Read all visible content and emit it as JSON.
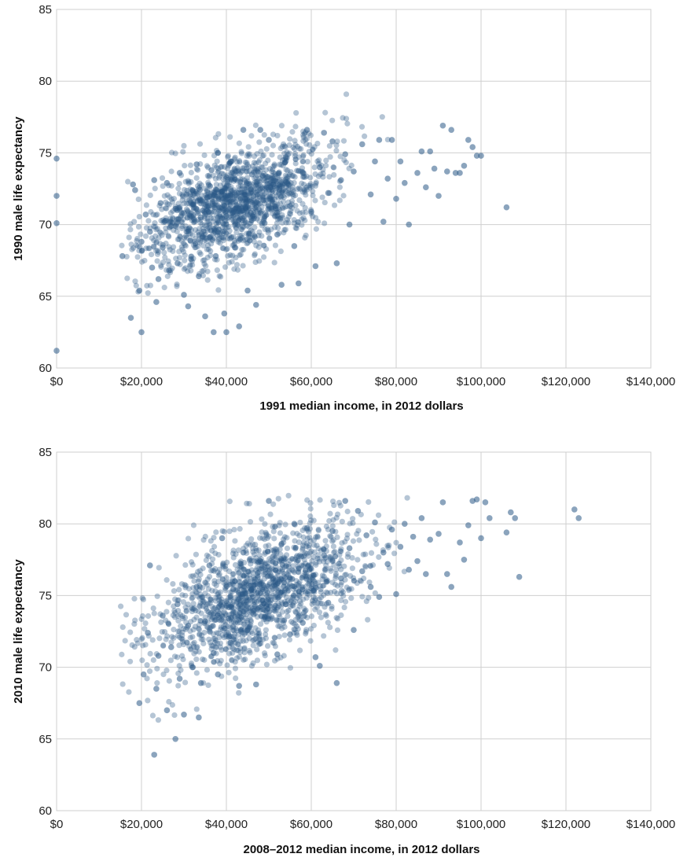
{
  "colors": {
    "point": "#2b5a86",
    "grid": "#cfcfcf",
    "background": "#ffffff",
    "text": "#222222"
  },
  "chart_data": [
    {
      "type": "scatter",
      "xlabel": "1991 median income, in 2012 dollars",
      "ylabel": "1990 male life expectancy",
      "xlim": [
        0,
        140000
      ],
      "ylim": [
        60,
        85
      ],
      "x_ticks": [
        "$0",
        "$20,000",
        "$40,000",
        "$60,000",
        "$80,000",
        "$100,000",
        "$120,000",
        "$140,000"
      ],
      "y_ticks": [
        "60",
        "65",
        "70",
        "75",
        "80",
        "85"
      ],
      "x_tick_values": [
        0,
        20000,
        40000,
        60000,
        80000,
        100000,
        120000,
        140000
      ],
      "y_tick_values": [
        60,
        65,
        70,
        75,
        80,
        85
      ],
      "grid": true,
      "points": [
        [
          0,
          74.6
        ],
        [
          0,
          72.0
        ],
        [
          0,
          70.1
        ],
        [
          0,
          61.2
        ],
        [
          15500,
          67.8
        ],
        [
          17500,
          63.5
        ],
        [
          18000,
          72.8
        ],
        [
          18500,
          72.4
        ],
        [
          19500,
          65.4
        ],
        [
          20000,
          62.5
        ],
        [
          20000,
          68.8
        ],
        [
          21000,
          70.7
        ],
        [
          22000,
          69.5
        ],
        [
          22500,
          67.0
        ],
        [
          23000,
          73.1
        ],
        [
          23500,
          64.6
        ],
        [
          24000,
          66.2
        ],
        [
          24500,
          71.5
        ],
        [
          25000,
          68.4
        ],
        [
          25500,
          70.2
        ],
        [
          26000,
          72.9
        ],
        [
          26500,
          66.8
        ],
        [
          27000,
          69.9
        ],
        [
          28000,
          71.1
        ],
        [
          28500,
          67.3
        ],
        [
          29000,
          73.6
        ],
        [
          30000,
          65.1
        ],
        [
          30000,
          70.8
        ],
        [
          31000,
          64.3
        ],
        [
          31500,
          68.9
        ],
        [
          32000,
          72.4
        ],
        [
          33000,
          74.2
        ],
        [
          33500,
          66.4
        ],
        [
          34000,
          70.5
        ],
        [
          35000,
          63.6
        ],
        [
          35500,
          71.9
        ],
        [
          36000,
          69.1
        ],
        [
          36500,
          73.8
        ],
        [
          37000,
          62.5
        ],
        [
          37500,
          67.8
        ],
        [
          38000,
          75.0
        ],
        [
          39000,
          72.3
        ],
        [
          39500,
          63.8
        ],
        [
          40000,
          70.6
        ],
        [
          40000,
          62.5
        ],
        [
          41000,
          74.4
        ],
        [
          42000,
          68.4
        ],
        [
          43000,
          62.9
        ],
        [
          44000,
          76.6
        ],
        [
          44500,
          71.2
        ],
        [
          45000,
          65.4
        ],
        [
          46000,
          73.5
        ],
        [
          47000,
          64.4
        ],
        [
          48000,
          76.6
        ],
        [
          49000,
          70.1
        ],
        [
          50000,
          75.9
        ],
        [
          51000,
          72.8
        ],
        [
          52000,
          69.3
        ],
        [
          53000,
          65.8
        ],
        [
          54000,
          74.7
        ],
        [
          55000,
          71.3
        ],
        [
          56000,
          68.5
        ],
        [
          57000,
          65.9
        ],
        [
          58000,
          73.6
        ],
        [
          59000,
          76.6
        ],
        [
          60000,
          70.9
        ],
        [
          61000,
          67.1
        ],
        [
          62000,
          74.0
        ],
        [
          63000,
          76.4
        ],
        [
          64000,
          72.2
        ],
        [
          65000,
          75.8
        ],
        [
          66000,
          67.3
        ],
        [
          67000,
          73.1
        ],
        [
          68000,
          74.9
        ],
        [
          69000,
          70.0
        ],
        [
          70000,
          73.7
        ],
        [
          72000,
          75.6
        ],
        [
          74000,
          72.1
        ],
        [
          75000,
          74.4
        ],
        [
          76000,
          75.9
        ],
        [
          77000,
          70.2
        ],
        [
          78000,
          73.2
        ],
        [
          79000,
          75.9
        ],
        [
          80000,
          71.8
        ],
        [
          81000,
          74.4
        ],
        [
          82000,
          72.9
        ],
        [
          83000,
          70.0
        ],
        [
          85000,
          73.6
        ],
        [
          86000,
          75.1
        ],
        [
          87000,
          72.6
        ],
        [
          88000,
          75.1
        ],
        [
          89000,
          73.9
        ],
        [
          90000,
          72.0
        ],
        [
          91000,
          76.9
        ],
        [
          92000,
          73.7
        ],
        [
          93000,
          76.6
        ],
        [
          94000,
          73.6
        ],
        [
          95000,
          73.6
        ],
        [
          96000,
          74.1
        ],
        [
          97000,
          75.9
        ],
        [
          98000,
          75.4
        ],
        [
          99000,
          74.8
        ],
        [
          100000,
          74.8
        ],
        [
          106000,
          71.2
        ]
      ]
    },
    {
      "type": "scatter",
      "xlabel": "2008–2012 median income, in 2012 dollars",
      "ylabel": "2010 male life expectancy",
      "xlim": [
        0,
        140000
      ],
      "ylim": [
        60,
        85
      ],
      "x_ticks": [
        "$0",
        "$20,000",
        "$40,000",
        "$60,000",
        "$80,000",
        "$100,000",
        "$120,000",
        "$140,000"
      ],
      "y_ticks": [
        "60",
        "65",
        "70",
        "75",
        "80",
        "85"
      ],
      "x_tick_values": [
        0,
        20000,
        40000,
        60000,
        80000,
        100000,
        120000,
        140000
      ],
      "y_tick_values": [
        60,
        65,
        70,
        75,
        80,
        85
      ],
      "grid": true,
      "points": [
        [
          19500,
          67.5
        ],
        [
          20500,
          69.5
        ],
        [
          21500,
          72.4
        ],
        [
          22000,
          77.1
        ],
        [
          23000,
          63.9
        ],
        [
          23500,
          68.5
        ],
        [
          24000,
          70.8
        ],
        [
          25000,
          73.6
        ],
        [
          26000,
          67.0
        ],
        [
          27000,
          71.4
        ],
        [
          28000,
          65.0
        ],
        [
          28500,
          74.4
        ],
        [
          29000,
          69.2
        ],
        [
          30000,
          66.7
        ],
        [
          31000,
          72.9
        ],
        [
          32000,
          70.0
        ],
        [
          33000,
          75.6
        ],
        [
          33500,
          66.5
        ],
        [
          34000,
          68.9
        ],
        [
          35000,
          73.2
        ],
        [
          36000,
          77.1
        ],
        [
          37000,
          71.0
        ],
        [
          38000,
          69.5
        ],
        [
          39000,
          79.0
        ],
        [
          40000,
          74.3
        ],
        [
          41000,
          71.7
        ],
        [
          42000,
          76.0
        ],
        [
          43000,
          68.7
        ],
        [
          44000,
          78.0
        ],
        [
          45000,
          72.6
        ],
        [
          46000,
          75.1
        ],
        [
          47000,
          68.8
        ],
        [
          48000,
          77.4
        ],
        [
          49000,
          73.5
        ],
        [
          50000,
          81.6
        ],
        [
          51000,
          76.2
        ],
        [
          52000,
          70.9
        ],
        [
          53000,
          78.6
        ],
        [
          54000,
          74.4
        ],
        [
          55000,
          72.3
        ],
        [
          56000,
          80.0
        ],
        [
          57000,
          76.9
        ],
        [
          58000,
          73.1
        ],
        [
          59000,
          79.7
        ],
        [
          60000,
          75.5
        ],
        [
          61000,
          70.7
        ],
        [
          62000,
          70.1
        ],
        [
          63000,
          77.8
        ],
        [
          64000,
          74.5
        ],
        [
          65000,
          79.5
        ],
        [
          66000,
          68.9
        ],
        [
          67000,
          76.2
        ],
        [
          68000,
          81.6
        ],
        [
          69000,
          78.3
        ],
        [
          70000,
          72.6
        ],
        [
          71000,
          80.9
        ],
        [
          72000,
          76.7
        ],
        [
          73000,
          79.2
        ],
        [
          74000,
          75.6
        ],
        [
          75000,
          80.1
        ],
        [
          76000,
          74.9
        ],
        [
          77000,
          78.0
        ],
        [
          78000,
          77.2
        ],
        [
          79000,
          79.6
        ],
        [
          80000,
          75.1
        ],
        [
          81000,
          78.4
        ],
        [
          82000,
          80.0
        ],
        [
          83000,
          76.8
        ],
        [
          84000,
          79.1
        ],
        [
          85000,
          77.4
        ],
        [
          86000,
          80.4
        ],
        [
          87000,
          76.5
        ],
        [
          88000,
          78.9
        ],
        [
          90000,
          79.3
        ],
        [
          91000,
          81.5
        ],
        [
          92000,
          76.5
        ],
        [
          93000,
          75.6
        ],
        [
          95000,
          78.7
        ],
        [
          96000,
          77.5
        ],
        [
          97000,
          79.9
        ],
        [
          98000,
          81.6
        ],
        [
          99000,
          81.7
        ],
        [
          100000,
          79.0
        ],
        [
          101000,
          81.5
        ],
        [
          102000,
          80.4
        ],
        [
          106000,
          79.4
        ],
        [
          107000,
          80.8
        ],
        [
          108000,
          80.4
        ],
        [
          109000,
          76.3
        ],
        [
          122000,
          81.0
        ],
        [
          123000,
          80.4
        ]
      ]
    }
  ]
}
